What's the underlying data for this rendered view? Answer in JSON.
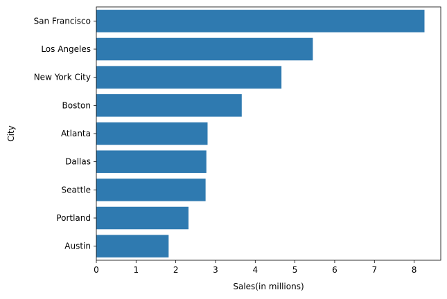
{
  "chart_data": {
    "type": "bar",
    "orientation": "horizontal",
    "title": "",
    "xlabel": "Sales(in millions)",
    "ylabel": "City",
    "categories": [
      "San Francisco",
      "Los Angeles",
      "New York City",
      "Boston",
      "Atlanta",
      "Dallas",
      "Seattle",
      "Portland",
      "Austin"
    ],
    "values": [
      8.26,
      5.45,
      4.66,
      3.66,
      2.8,
      2.77,
      2.75,
      2.32,
      1.82
    ],
    "xlim": [
      0,
      8.67
    ],
    "xticks": [
      "0",
      "1",
      "2",
      "3",
      "4",
      "5",
      "6",
      "7",
      "8"
    ],
    "grid": false,
    "legend": "none",
    "bar_color": "#2f7ab0"
  }
}
